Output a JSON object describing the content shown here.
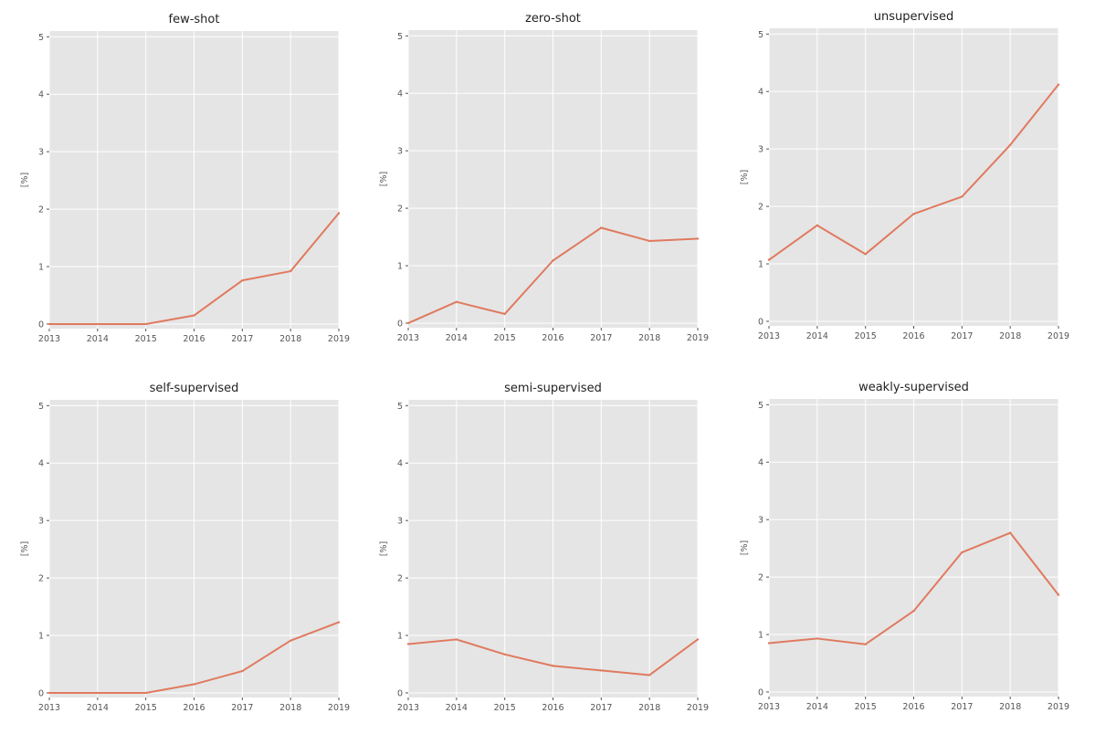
{
  "chart_data": [
    {
      "type": "line",
      "title": "few-shot",
      "xlabel": "",
      "ylabel": "[%]",
      "x": [
        2013,
        2014,
        2015,
        2016,
        2017,
        2018,
        2019
      ],
      "values": [
        0.0,
        0.0,
        0.0,
        0.15,
        0.76,
        0.92,
        1.93
      ],
      "xlim": [
        2013,
        2019
      ],
      "ylim": [
        -0.08,
        5.1
      ],
      "yticks": [
        0,
        1,
        2,
        3,
        4,
        5
      ],
      "grid": true,
      "line_color": "#e07a5f"
    },
    {
      "type": "line",
      "title": "zero-shot",
      "xlabel": "",
      "ylabel": "[%]",
      "x": [
        2013,
        2014,
        2015,
        2016,
        2017,
        2018,
        2019
      ],
      "values": [
        0.0,
        0.37,
        0.16,
        1.09,
        1.66,
        1.43,
        1.47
      ],
      "xlim": [
        2013,
        2019
      ],
      "ylim": [
        -0.08,
        5.1
      ],
      "yticks": [
        0,
        1,
        2,
        3,
        4,
        5
      ],
      "grid": true,
      "line_color": "#e07a5f"
    },
    {
      "type": "line",
      "title": "unsupervised",
      "xlabel": "",
      "ylabel": "[%]",
      "x": [
        2013,
        2014,
        2015,
        2016,
        2017,
        2018,
        2019
      ],
      "values": [
        1.07,
        1.67,
        1.17,
        1.87,
        2.17,
        3.07,
        4.12
      ],
      "xlim": [
        2013,
        2019
      ],
      "ylim": [
        -0.08,
        5.1
      ],
      "yticks": [
        0,
        1,
        2,
        3,
        4,
        5
      ],
      "grid": true,
      "line_color": "#e07a5f"
    },
    {
      "type": "line",
      "title": "self-supervised",
      "xlabel": "",
      "ylabel": "[%]",
      "x": [
        2013,
        2014,
        2015,
        2016,
        2017,
        2018,
        2019
      ],
      "values": [
        0.0,
        0.0,
        0.0,
        0.15,
        0.38,
        0.91,
        1.23
      ],
      "xlim": [
        2013,
        2019
      ],
      "ylim": [
        -0.08,
        5.1
      ],
      "yticks": [
        0,
        1,
        2,
        3,
        4,
        5
      ],
      "grid": true,
      "line_color": "#e07a5f"
    },
    {
      "type": "line",
      "title": "semi-supervised",
      "xlabel": "",
      "ylabel": "[%]",
      "x": [
        2013,
        2014,
        2015,
        2016,
        2017,
        2018,
        2019
      ],
      "values": [
        0.85,
        0.93,
        0.67,
        0.47,
        0.39,
        0.31,
        0.93
      ],
      "xlim": [
        2013,
        2019
      ],
      "ylim": [
        -0.08,
        5.1
      ],
      "yticks": [
        0,
        1,
        2,
        3,
        4,
        5
      ],
      "grid": true,
      "line_color": "#e07a5f"
    },
    {
      "type": "line",
      "title": "weakly-supervised",
      "xlabel": "",
      "ylabel": "[%]",
      "x": [
        2013,
        2014,
        2015,
        2016,
        2017,
        2018,
        2019
      ],
      "values": [
        0.85,
        0.93,
        0.83,
        1.41,
        2.43,
        2.77,
        1.69
      ],
      "xlim": [
        2013,
        2019
      ],
      "ylim": [
        -0.08,
        5.1
      ],
      "yticks": [
        0,
        1,
        2,
        3,
        4,
        5
      ],
      "grid": true,
      "line_color": "#e07a5f"
    }
  ]
}
